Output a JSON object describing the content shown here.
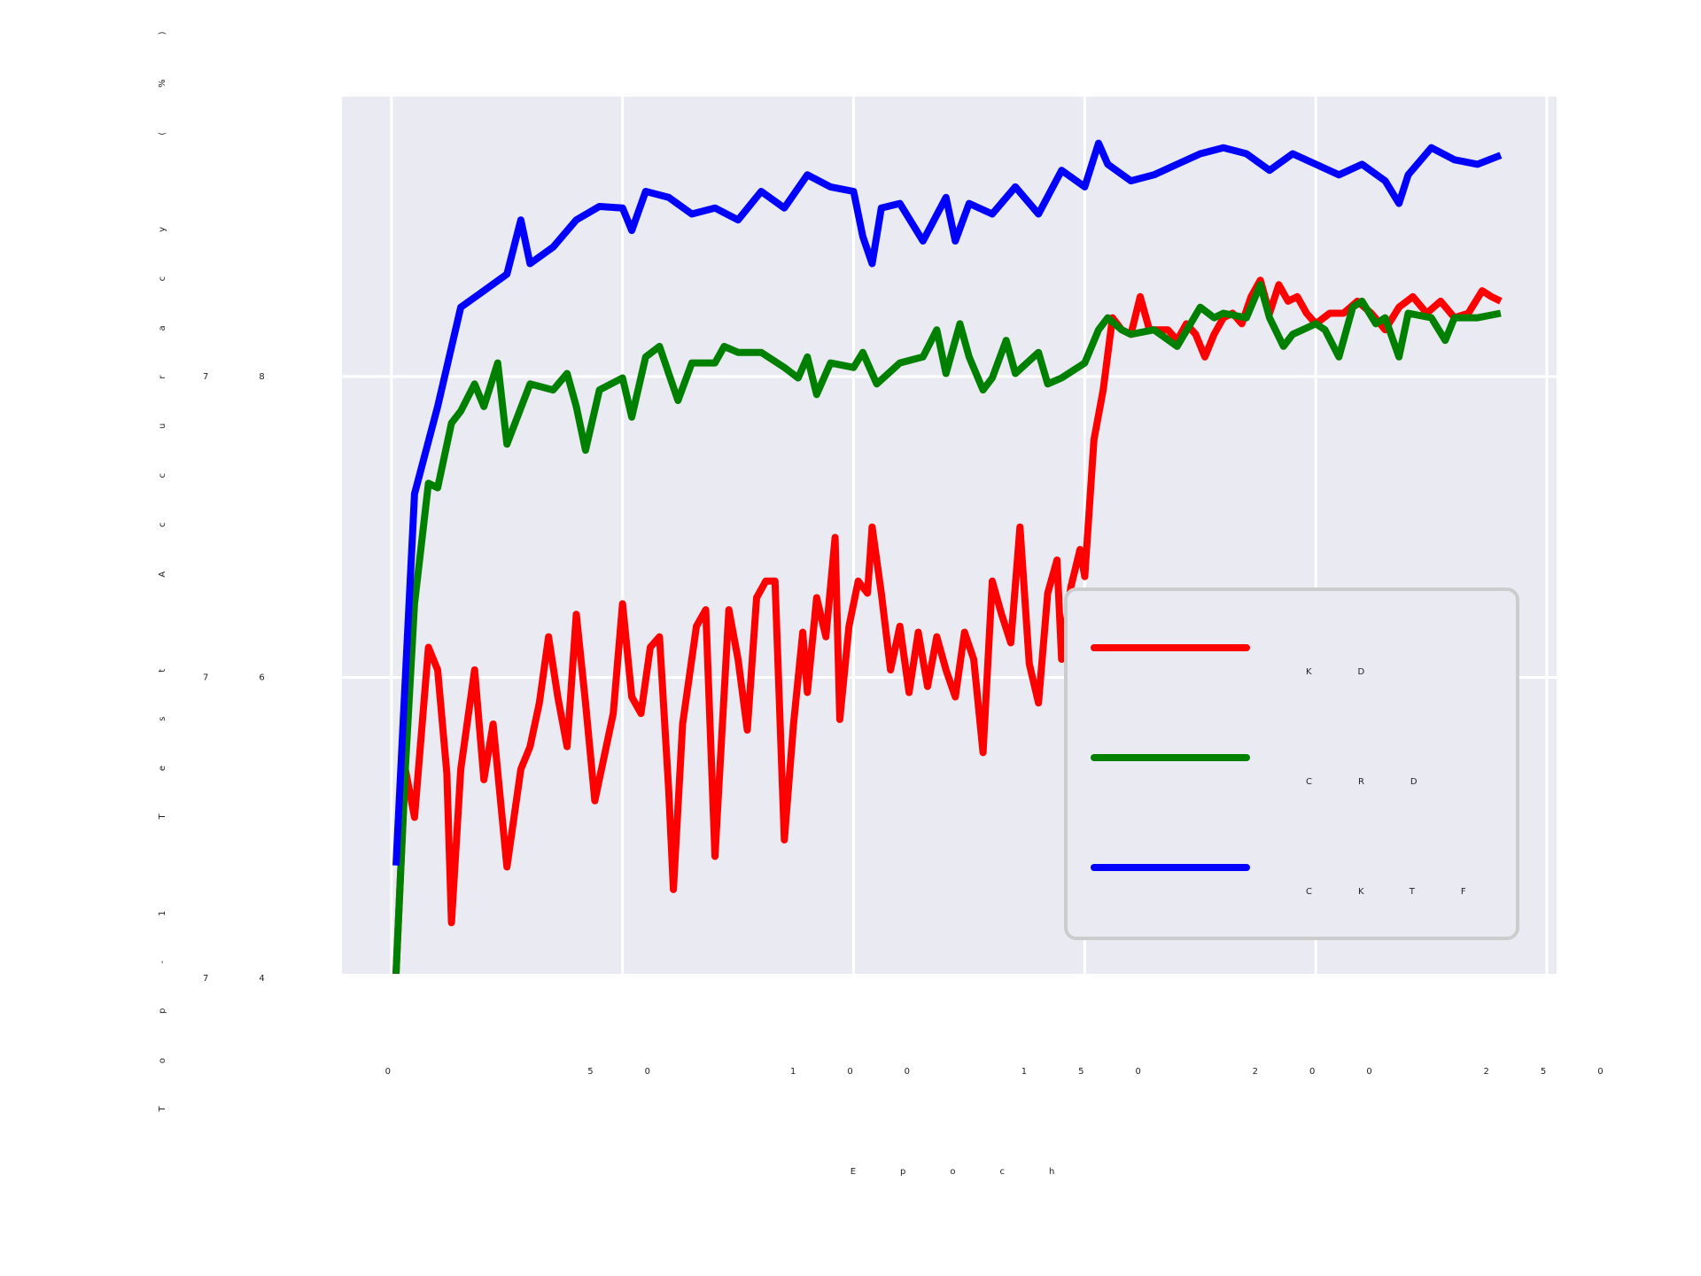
{
  "chart_data": {
    "type": "line",
    "x_label": "Epoch",
    "y_label": "Top-1 Test Accuracy (%)",
    "xlim": [
      -10.7,
      252.1
    ],
    "xticks": [
      0,
      50,
      100,
      150,
      200,
      250
    ],
    "ylim": [
      74.03,
      79.86
    ],
    "yticks": [
      74,
      76,
      78
    ],
    "grid": true,
    "legend": "lower right",
    "series": [
      {
        "name": "KD",
        "color": "#ff0000",
        "x": [
          1,
          3,
          5,
          8,
          10,
          12,
          13,
          15,
          18,
          20,
          22,
          25,
          28,
          30,
          32,
          34,
          36,
          38,
          40,
          42,
          44,
          46,
          48,
          50,
          52,
          54,
          56,
          58,
          60,
          61,
          63,
          66,
          68,
          70,
          73,
          75,
          77,
          79,
          81,
          83,
          85,
          87,
          89,
          90,
          92,
          94,
          96,
          97,
          99,
          101,
          103,
          104,
          106,
          108,
          110,
          112,
          114,
          116,
          118,
          120,
          122,
          124,
          126,
          128,
          130,
          132,
          134,
          136,
          138,
          140,
          142,
          144,
          145,
          147,
          149,
          150,
          152,
          154,
          156,
          158,
          160,
          162,
          164,
          166,
          168,
          170,
          172,
          174,
          176,
          178,
          180,
          182,
          184,
          186,
          188,
          190,
          192,
          194,
          196,
          198,
          200,
          203,
          206,
          209,
          212,
          215,
          218,
          221,
          224,
          227,
          230,
          233,
          236,
          238,
          240
        ],
        "values": [
          74.03,
          75.39,
          75.07,
          76.2,
          76.05,
          75.36,
          74.37,
          75.39,
          76.05,
          75.32,
          75.69,
          74.74,
          75.39,
          75.54,
          75.83,
          76.27,
          75.87,
          75.54,
          76.42,
          75.83,
          75.18,
          75.47,
          75.76,
          76.49,
          75.87,
          75.76,
          76.2,
          76.27,
          75.25,
          74.59,
          75.69,
          76.34,
          76.45,
          74.81,
          76.45,
          76.12,
          75.65,
          76.53,
          76.64,
          76.64,
          74.92,
          75.69,
          76.3,
          75.9,
          76.53,
          76.27,
          76.93,
          75.72,
          76.34,
          76.64,
          76.56,
          77.0,
          76.56,
          76.05,
          76.34,
          75.9,
          76.3,
          75.94,
          76.27,
          76.05,
          75.87,
          76.3,
          76.12,
          75.5,
          76.64,
          76.42,
          76.23,
          77.0,
          76.09,
          75.83,
          76.56,
          76.78,
          76.12,
          76.6,
          76.85,
          76.67,
          77.58,
          77.91,
          78.39,
          78.31,
          78.28,
          78.53,
          78.31,
          78.31,
          78.31,
          78.24,
          78.35,
          78.28,
          78.13,
          78.28,
          78.39,
          78.42,
          78.35,
          78.53,
          78.64,
          78.42,
          78.61,
          78.5,
          78.53,
          78.42,
          78.35,
          78.42,
          78.42,
          78.5,
          78.42,
          78.31,
          78.46,
          78.53,
          78.42,
          78.5,
          78.39,
          78.42,
          78.57,
          78.53,
          78.5
        ]
      },
      {
        "name": "CRD",
        "color": "#008000",
        "x": [
          1,
          3,
          5,
          8,
          10,
          13,
          15,
          18,
          20,
          23,
          25,
          30,
          35,
          38,
          40,
          42,
          45,
          50,
          52,
          55,
          58,
          60,
          62,
          65,
          70,
          72,
          75,
          80,
          85,
          88,
          90,
          92,
          95,
          100,
          102,
          105,
          110,
          115,
          118,
          120,
          123,
          125,
          128,
          130,
          133,
          135,
          140,
          142,
          145,
          150,
          153,
          155,
          158,
          160,
          165,
          170,
          175,
          178,
          180,
          185,
          188,
          190,
          193,
          195,
          200,
          202,
          205,
          208,
          210,
          213,
          215,
          218,
          220,
          225,
          228,
          230,
          235,
          240
        ],
        "values": [
          74.03,
          75.39,
          76.49,
          77.29,
          77.26,
          77.69,
          77.77,
          77.95,
          77.8,
          78.09,
          77.55,
          77.95,
          77.91,
          78.02,
          77.8,
          77.51,
          77.91,
          77.99,
          77.73,
          78.13,
          78.2,
          78.02,
          77.84,
          78.09,
          78.09,
          78.2,
          78.16,
          78.16,
          78.06,
          77.99,
          78.13,
          77.88,
          78.09,
          78.06,
          78.16,
          77.95,
          78.09,
          78.13,
          78.31,
          78.02,
          78.35,
          78.13,
          77.91,
          77.99,
          78.24,
          78.02,
          78.16,
          77.95,
          77.99,
          78.09,
          78.31,
          78.39,
          78.31,
          78.28,
          78.31,
          78.2,
          78.46,
          78.39,
          78.42,
          78.39,
          78.61,
          78.39,
          78.2,
          78.28,
          78.35,
          78.31,
          78.13,
          78.46,
          78.5,
          78.35,
          78.39,
          78.13,
          78.42,
          78.39,
          78.24,
          78.39,
          78.39,
          78.42
        ]
      },
      {
        "name": "CKTF",
        "color": "#0000ff",
        "x": [
          1,
          5,
          10,
          15,
          20,
          25,
          28,
          30,
          35,
          40,
          45,
          50,
          52,
          55,
          60,
          65,
          70,
          75,
          80,
          85,
          90,
          95,
          100,
          102,
          104,
          106,
          110,
          115,
          120,
          122,
          125,
          130,
          135,
          140,
          145,
          150,
          153,
          155,
          160,
          165,
          170,
          175,
          180,
          185,
          190,
          195,
          200,
          205,
          210,
          215,
          218,
          220,
          225,
          230,
          235,
          240
        ],
        "values": [
          74.75,
          77.22,
          77.8,
          78.46,
          78.57,
          78.68,
          79.04,
          78.75,
          78.86,
          79.04,
          79.13,
          79.12,
          78.97,
          79.23,
          79.19,
          79.08,
          79.12,
          79.04,
          79.23,
          79.12,
          79.34,
          79.26,
          79.23,
          78.93,
          78.75,
          79.12,
          79.15,
          78.9,
          79.19,
          78.9,
          79.15,
          79.08,
          79.26,
          79.08,
          79.37,
          79.26,
          79.55,
          79.41,
          79.3,
          79.34,
          79.41,
          79.48,
          79.52,
          79.48,
          79.37,
          79.48,
          79.41,
          79.34,
          79.41,
          79.3,
          79.15,
          79.34,
          79.52,
          79.44,
          79.41,
          79.47
        ]
      }
    ]
  }
}
